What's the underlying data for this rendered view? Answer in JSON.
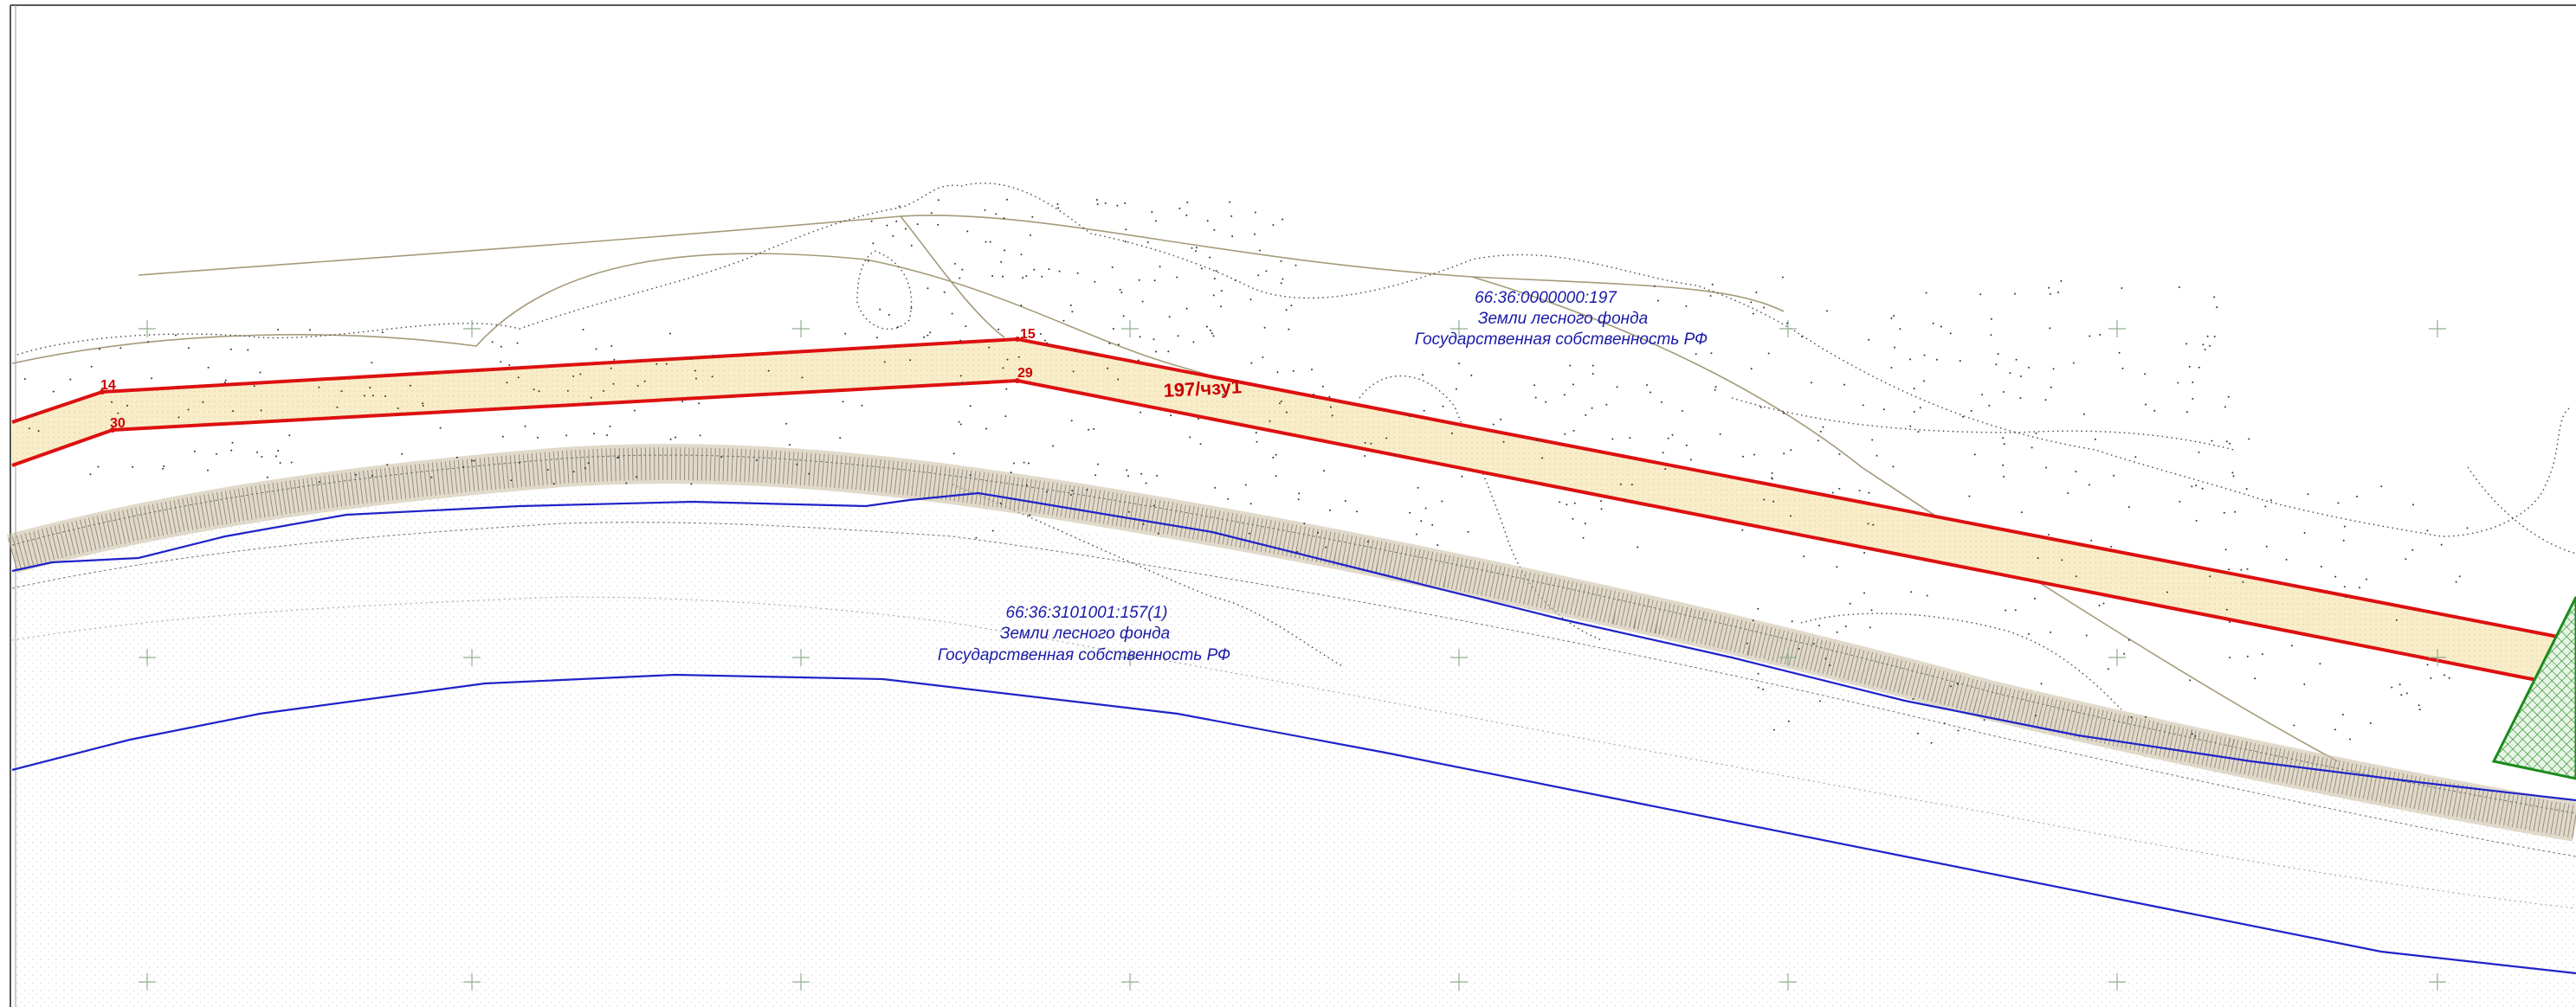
{
  "parcels": [
    {
      "cadastral_number": "66:36:0000000:197",
      "land_category": "Земли лесного фонда",
      "ownership": "Государственная собственность РФ"
    },
    {
      "cadastral_number": "66:36:3101001:157(1)",
      "land_category": "Земли лесного фонда",
      "ownership": "Государственная собственность РФ"
    }
  ],
  "zone_label": "197/чзу1",
  "points": [
    "14",
    "15",
    "29",
    "30"
  ],
  "colors": {
    "boundary_red": "#dd1010",
    "corridor_fill": "#f8edc8",
    "blue_line": "#1f22c8",
    "green_area": "#1a8a1a",
    "terrain_line": "#a59a7a",
    "hatch": "#8a8170",
    "frame": "#555555"
  }
}
